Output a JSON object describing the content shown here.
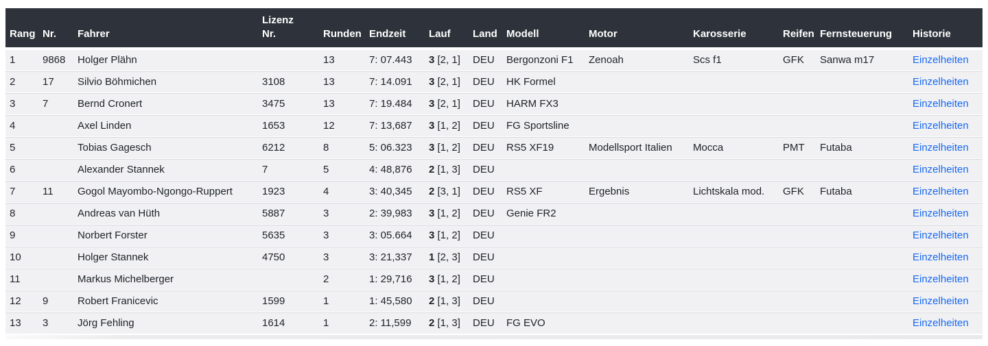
{
  "colors": {
    "header_bg": "#2e333b",
    "row_bg": "#f1f1f3",
    "separator": "#d7dade",
    "link": "#1668f2",
    "text": "#1d2126"
  },
  "table": {
    "columns": {
      "rang": "Rang",
      "nr": "Nr.",
      "fahrer": "Fahrer",
      "lizenz": "Lizenz\nNr.",
      "runden": "Runden",
      "endzeit": "Endzeit",
      "lauf": "Lauf",
      "land": "Land",
      "modell": "Modell",
      "motor": "Motor",
      "karosserie": "Karosserie",
      "reifen": "Reifen",
      "fernsteuerung": "Fernsteuerung",
      "historie": "Historie"
    },
    "details_label": "Einzelheiten",
    "rows": [
      {
        "rang": "1",
        "nr": "9868",
        "fahrer": "Holger Plähn",
        "lizenz": "",
        "runden": "13",
        "endzeit": "7: 07.443",
        "lauf_num": "3",
        "lauf_detail": "[2, 1]",
        "land": "DEU",
        "modell": "Bergonzoni F1",
        "motor": "Zenoah",
        "karosserie": "Scs f1",
        "reifen": "GFK",
        "fernsteuerung": "Sanwa m17"
      },
      {
        "rang": "2",
        "nr": "17",
        "fahrer": "Silvio Böhmichen",
        "lizenz": "3108",
        "runden": "13",
        "endzeit": "7: 14.091",
        "lauf_num": "3",
        "lauf_detail": "[2, 1]",
        "land": "DEU",
        "modell": "HK Formel",
        "motor": "",
        "karosserie": "",
        "reifen": "",
        "fernsteuerung": ""
      },
      {
        "rang": "3",
        "nr": "7",
        "fahrer": "Bernd Cronert",
        "lizenz": "3475",
        "runden": "13",
        "endzeit": "7: 19.484",
        "lauf_num": "3",
        "lauf_detail": "[2, 1]",
        "land": "DEU",
        "modell": "HARM FX3",
        "motor": "",
        "karosserie": "",
        "reifen": "",
        "fernsteuerung": ""
      },
      {
        "rang": "4",
        "nr": "",
        "fahrer": "Axel Linden",
        "lizenz": "1653",
        "runden": "12",
        "endzeit": "7: 13,687",
        "lauf_num": "3",
        "lauf_detail": "[1, 2]",
        "land": "DEU",
        "modell": "FG Sportsline",
        "motor": "",
        "karosserie": "",
        "reifen": "",
        "fernsteuerung": ""
      },
      {
        "rang": "5",
        "nr": "",
        "fahrer": "Tobias Gagesch",
        "lizenz": "6212",
        "runden": "8",
        "endzeit": "5: 06.323",
        "lauf_num": "3",
        "lauf_detail": "[1, 2]",
        "land": "DEU",
        "modell": "RS5 XF19",
        "motor": "Modellsport Italien",
        "karosserie": "Mocca",
        "reifen": "PMT",
        "fernsteuerung": "Futaba"
      },
      {
        "rang": "6",
        "nr": "",
        "fahrer": "Alexander Stannek",
        "lizenz": "7",
        "runden": "5",
        "endzeit": "4: 48,876",
        "lauf_num": "2",
        "lauf_detail": "[1, 3]",
        "land": "DEU",
        "modell": "",
        "motor": "",
        "karosserie": "",
        "reifen": "",
        "fernsteuerung": ""
      },
      {
        "rang": "7",
        "nr": "11",
        "fahrer": "Gogol Mayombo-Ngongo-Ruppert",
        "lizenz": "1923",
        "runden": "4",
        "endzeit": "3: 40,345",
        "lauf_num": "2",
        "lauf_detail": "[3, 1]",
        "land": "DEU",
        "modell": "RS5 XF",
        "motor": "Ergebnis",
        "karosserie": "Lichtskala mod.",
        "reifen": "GFK",
        "fernsteuerung": "Futaba"
      },
      {
        "rang": "8",
        "nr": "",
        "fahrer": "Andreas van Hüth",
        "lizenz": "5887",
        "runden": "3",
        "endzeit": "2: 39,983",
        "lauf_num": "3",
        "lauf_detail": "[1, 2]",
        "land": "DEU",
        "modell": "Genie FR2",
        "motor": "",
        "karosserie": "",
        "reifen": "",
        "fernsteuerung": ""
      },
      {
        "rang": "9",
        "nr": "",
        "fahrer": "Norbert Forster",
        "lizenz": "5635",
        "runden": "3",
        "endzeit": "3: 05.664",
        "lauf_num": "3",
        "lauf_detail": "[1, 2]",
        "land": "DEU",
        "modell": "",
        "motor": "",
        "karosserie": "",
        "reifen": "",
        "fernsteuerung": ""
      },
      {
        "rang": "10",
        "nr": "",
        "fahrer": "Holger Stannek",
        "lizenz": "4750",
        "runden": "3",
        "endzeit": "3: 21,337",
        "lauf_num": "1",
        "lauf_detail": "[2, 3]",
        "land": "DEU",
        "modell": "",
        "motor": "",
        "karosserie": "",
        "reifen": "",
        "fernsteuerung": ""
      },
      {
        "rang": "11",
        "nr": "",
        "fahrer": "Markus Michelberger",
        "lizenz": "",
        "runden": "2",
        "endzeit": "1: 29,716",
        "lauf_num": "3",
        "lauf_detail": "[1, 2]",
        "land": "DEU",
        "modell": "",
        "motor": "",
        "karosserie": "",
        "reifen": "",
        "fernsteuerung": ""
      },
      {
        "rang": "12",
        "nr": "9",
        "fahrer": "Robert Franicevic",
        "lizenz": "1599",
        "runden": "1",
        "endzeit": "1: 45,580",
        "lauf_num": "2",
        "lauf_detail": "[1, 3]",
        "land": "DEU",
        "modell": "",
        "motor": "",
        "karosserie": "",
        "reifen": "",
        "fernsteuerung": ""
      },
      {
        "rang": "13",
        "nr": "3",
        "fahrer": "Jörg Fehling",
        "lizenz": "1614",
        "runden": "1",
        "endzeit": "2: 11,599",
        "lauf_num": "2",
        "lauf_detail": "[1, 3]",
        "land": "DEU",
        "modell": "FG EVO",
        "motor": "",
        "karosserie": "",
        "reifen": "",
        "fernsteuerung": ""
      }
    ]
  }
}
